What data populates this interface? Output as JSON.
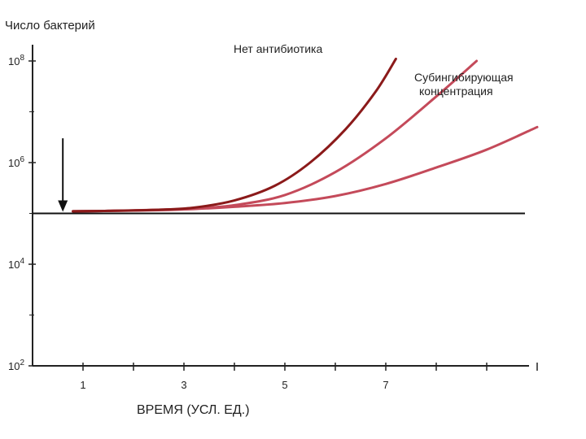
{
  "chart_data": {
    "type": "line",
    "ylabel": "Число бактерий",
    "xlabel": "ВРЕМЯ (УСЛ. ЕД.)",
    "yscale": "log",
    "ylim": [
      100,
      100000000
    ],
    "xlim": [
      0.0,
      10.0
    ],
    "y_ticks": [
      {
        "base": "10",
        "exp": "8",
        "value": 100000000
      },
      {
        "base": "10",
        "exp": "6",
        "value": 1000000
      },
      {
        "base": "10",
        "exp": "4",
        "value": 10000
      },
      {
        "base": "10",
        "exp": "2",
        "value": 100
      }
    ],
    "x_ticks": [
      "1",
      "3",
      "5",
      "7"
    ],
    "x_tick_values": [
      1,
      3,
      5,
      7
    ],
    "reference_line_y": 100000,
    "arrow": {
      "x": 0.6,
      "y_from": 3000000,
      "y_to": 100000
    },
    "series": [
      {
        "name": "Нет антибиотика",
        "color": "#8b1a1a",
        "x": [
          0.8,
          1.5,
          2.5,
          3.2,
          4.0,
          4.8,
          5.5,
          6.2,
          6.8,
          7.2
        ],
        "y": [
          110000,
          112000,
          118000,
          130000,
          180000,
          350000,
          1000000,
          4500000,
          25000000,
          110000000
        ]
      },
      {
        "name": "Субингибирующая концентрация",
        "color": "#c44a5a",
        "x": [
          0.8,
          1.5,
          2.5,
          3.2,
          4.0,
          5.0,
          6.0,
          7.0,
          8.0,
          8.8
        ],
        "y": [
          110000,
          112000,
          118000,
          125000,
          145000,
          230000,
          650000,
          3000000,
          20000000,
          100000000
        ]
      },
      {
        "name": "",
        "color": "#c44a5a",
        "x": [
          0.8,
          1.5,
          2.5,
          3.2,
          4.0,
          5.0,
          6.0,
          7.0,
          8.0,
          9.0,
          10.0
        ],
        "y": [
          110000,
          112000,
          116000,
          122000,
          135000,
          160000,
          220000,
          380000,
          800000,
          1800000,
          5000000
        ]
      }
    ],
    "grid": false
  },
  "labels": {
    "series_1": "Нет антибиотика",
    "series_2_line1": "Субингибирующая",
    "series_2_line2": "концентрация"
  }
}
